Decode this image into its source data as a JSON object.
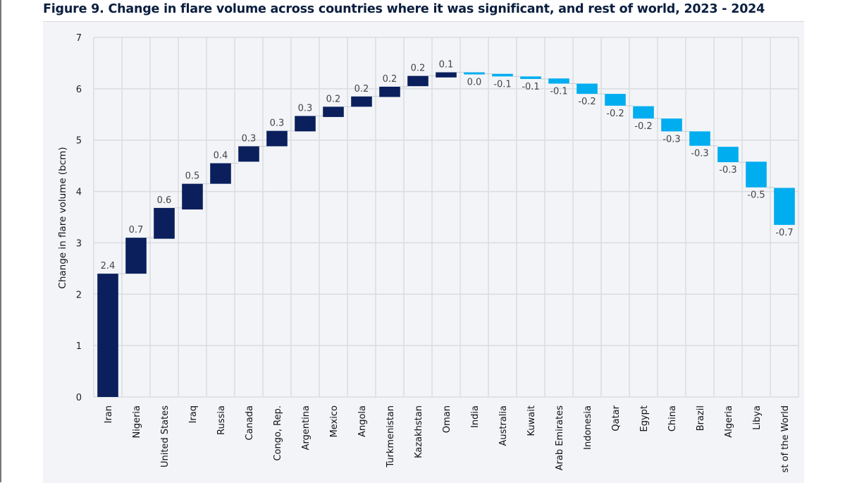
{
  "figure": {
    "title": "Figure 9. Change in flare volume across countries where it was significant, and rest of world, 2023 - 2024"
  },
  "colors": {
    "increase": "#0a1f5c",
    "decrease": "#00adef",
    "grid": "#d9dce0",
    "panel_background": "#f2f4f7"
  },
  "chart_data": {
    "type": "bar",
    "subtype": "waterfall",
    "title": "Figure 9. Change in flare volume across countries where it was significant, and rest of world, 2023 - 2024",
    "xlabel": "",
    "ylabel": "Change in flare volume (bcm)",
    "ylim": [
      0,
      7
    ],
    "yticks": [
      "0",
      "1",
      "2",
      "3",
      "4",
      "5",
      "6",
      "7"
    ],
    "grid": true,
    "legend": "none",
    "categories": [
      "Iran",
      "Nigeria",
      "United States",
      "Iraq",
      "Russia",
      "Canada",
      "Congo, Rep.",
      "Argentina",
      "Mexico",
      "Angola",
      "Turkmenistan",
      "Kazakhstan",
      "Oman",
      "India",
      "Australia",
      "Kuwait",
      "Arab Emirates",
      "Indonesia",
      "Qatar",
      "Egypt",
      "China",
      "Brazil",
      "Algeria",
      "Libya",
      "st of the World"
    ],
    "values": [
      2.4,
      0.7,
      0.6,
      0.5,
      0.4,
      0.3,
      0.3,
      0.3,
      0.2,
      0.2,
      0.2,
      0.2,
      0.1,
      -0.03,
      -0.05,
      -0.05,
      -0.1,
      -0.2,
      -0.23,
      -0.24,
      -0.25,
      -0.28,
      -0.3,
      -0.5,
      -0.72
    ],
    "data_labels": [
      "2.4",
      "0.7",
      "0.6",
      "0.5",
      "0.4",
      "0.3",
      "0.3",
      "0.3",
      "0.2",
      "0.2",
      "0.2",
      "0.2",
      "0.1",
      "0.0",
      "-0.1",
      "-0.1",
      "-0.1",
      "-0.2",
      "-0.2",
      "-0.2",
      "-0.3",
      "-0.3",
      "-0.3",
      "-0.5",
      "-0.7"
    ],
    "cumulative_start": [
      0,
      2.4,
      3.08,
      3.65,
      4.15,
      4.58,
      4.88,
      5.17,
      5.45,
      5.65,
      5.84,
      6.05,
      6.22,
      6.32,
      6.29,
      6.24,
      6.2,
      6.1,
      5.9,
      5.66,
      5.42,
      5.17,
      4.87,
      4.58,
      4.07
    ]
  }
}
